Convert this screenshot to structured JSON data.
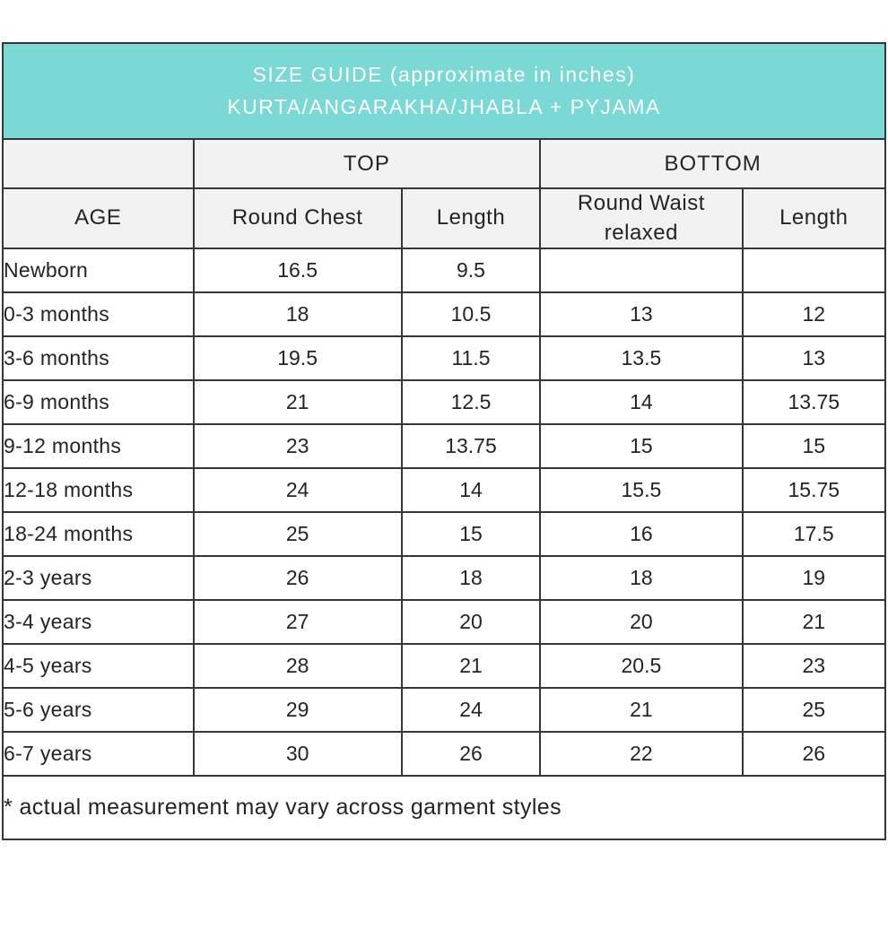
{
  "title": {
    "line1": "SIZE GUIDE (approximate in inches)",
    "line2": "KURTA/ANGARAKHA/JHABLA + PYJAMA"
  },
  "colors": {
    "caption_bg": "#7ad9d5",
    "caption_text": "#ffffff",
    "header_bg": "#f2f2f2",
    "border": "#33373a",
    "body_text": "#242424"
  },
  "table": {
    "group_headers": {
      "top": "TOP",
      "bottom": "BOTTOM"
    },
    "column_headers": {
      "age": "AGE",
      "round_chest": "Round Chest",
      "top_length": "Length",
      "round_waist": "Round Waist relaxed",
      "bottom_length": "Length"
    },
    "rows": [
      {
        "age": "Newborn",
        "chest": "16.5",
        "top_len": "9.5",
        "waist": "",
        "bottom_len": ""
      },
      {
        "age": "0-3 months",
        "chest": "18",
        "top_len": "10.5",
        "waist": "13",
        "bottom_len": "12"
      },
      {
        "age": "3-6 months",
        "chest": "19.5",
        "top_len": "11.5",
        "waist": "13.5",
        "bottom_len": "13"
      },
      {
        "age": "6-9 months",
        "chest": "21",
        "top_len": "12.5",
        "waist": "14",
        "bottom_len": "13.75"
      },
      {
        "age": "9-12 months",
        "chest": "23",
        "top_len": "13.75",
        "waist": "15",
        "bottom_len": "15"
      },
      {
        "age": "12-18 months",
        "chest": "24",
        "top_len": "14",
        "waist": "15.5",
        "bottom_len": "15.75"
      },
      {
        "age": "18-24 months",
        "chest": "25",
        "top_len": "15",
        "waist": "16",
        "bottom_len": "17.5"
      },
      {
        "age": "2-3 years",
        "chest": "26",
        "top_len": "18",
        "waist": "18",
        "bottom_len": "19"
      },
      {
        "age": "3-4 years",
        "chest": "27",
        "top_len": "20",
        "waist": "20",
        "bottom_len": "21"
      },
      {
        "age": "4-5 years",
        "chest": "28",
        "top_len": "21",
        "waist": "20.5",
        "bottom_len": "23"
      },
      {
        "age": "5-6 years",
        "chest": "29",
        "top_len": "24",
        "waist": "21",
        "bottom_len": "25"
      },
      {
        "age": "6-7 years",
        "chest": "30",
        "top_len": "26",
        "waist": "22",
        "bottom_len": "26"
      }
    ]
  },
  "footnote": "* actual measurement may vary across garment styles"
}
